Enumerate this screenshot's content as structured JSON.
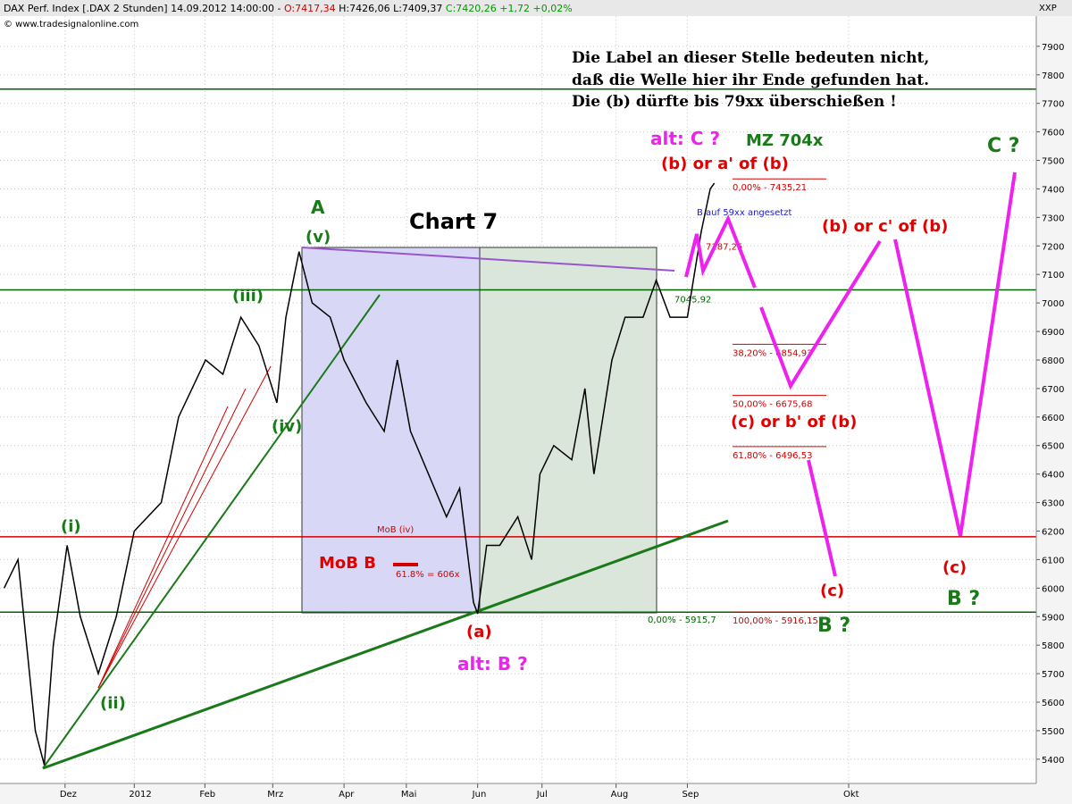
{
  "chart_data": {
    "type": "line",
    "header": {
      "instrument": "DAX Perf. Index [.DAX  2 Stunden] 14.09.2012 14:00:00 -",
      "open": "O:7417,34",
      "high": "H:7426,06",
      "low": "L:7409,37",
      "close": "C:7420,26 +1,72 +0,02%"
    },
    "copyright": "© www.tradesignalonline.com",
    "axis_label": "XXP",
    "x": [
      0.12,
      0.32,
      0.57,
      0.7,
      0.83,
      1.03,
      1.22,
      1.48,
      1.74,
      2.0,
      2.39,
      2.64,
      3.03,
      3.28,
      3.54,
      3.8,
      4.06,
      4.19,
      4.38,
      4.57,
      4.83,
      5.03,
      5.35,
      5.61,
      5.8,
      5.99,
      6.25,
      6.51,
      6.7,
      6.9,
      6.96,
      7.09,
      7.28,
      7.54,
      7.74,
      7.86,
      8.06,
      8.32,
      8.51,
      8.64,
      8.9,
      9.09,
      9.35,
      9.54,
      9.74,
      9.99,
      10.19,
      10.32,
      10.38
    ],
    "series": [
      {
        "color": "#000000",
        "values": [
          6000,
          6100,
          5500,
          5380,
          5800,
          6150,
          5900,
          5700,
          5900,
          6200,
          6300,
          6600,
          6800,
          6750,
          6950,
          6850,
          6650,
          6950,
          7180,
          7000,
          6950,
          6800,
          6650,
          6550,
          6800,
          6550,
          6400,
          6250,
          6350,
          5950,
          5910,
          6150,
          6150,
          6250,
          6100,
          6400,
          6500,
          6450,
          6700,
          6400,
          6800,
          6950,
          6950,
          7080,
          6950,
          6950,
          7250,
          7400,
          7420
        ]
      }
    ],
    "xlim": [
      0.06,
      15.03
    ],
    "xticks": [
      {
        "value": 1,
        "label": "Dez"
      },
      {
        "value": 2,
        "label": "2012"
      },
      {
        "value": 3.02,
        "label": "Feb"
      },
      {
        "value": 4,
        "label": "Mrz"
      },
      {
        "value": 5.03,
        "label": "Apr"
      },
      {
        "value": 5.93,
        "label": "Mai"
      },
      {
        "value": 6.96,
        "label": "Jun"
      },
      {
        "value": 7.89,
        "label": "Jul"
      },
      {
        "value": 8.96,
        "label": "Aug"
      },
      {
        "value": 9.99,
        "label": "Sep"
      },
      {
        "value": 12.32,
        "label": "Okt"
      }
    ],
    "ylim": [
      5315,
      8006
    ],
    "yticks": [
      5400,
      5500,
      5600,
      5700,
      5800,
      5900,
      6000,
      6100,
      6200,
      6300,
      6400,
      6500,
      6600,
      6700,
      6800,
      6900,
      7000,
      7100,
      7200,
      7300,
      7400,
      7500,
      7600,
      7700,
      7800,
      7900
    ],
    "grid": true,
    "hlines": [
      {
        "value": 7750,
        "color": "#006400"
      },
      {
        "value": 7045.92,
        "color": "#006400",
        "label": "7045,92"
      },
      {
        "value": 6180,
        "color": "#d00000"
      },
      {
        "value": 5915.7,
        "color": "#006400",
        "label": "0,00% - 5915,7"
      }
    ],
    "fib_levels": [
      {
        "value": 7435.21,
        "label": "0,00% - 7435,21"
      },
      {
        "value": 6854.93,
        "label": "38,20% - 6854,93"
      },
      {
        "value": 6675.68,
        "label": "50,00% - 6675,68"
      },
      {
        "value": 6496.53,
        "label": "61,80% - 6496,53"
      },
      {
        "value": 5916.15,
        "label": "100,00% - 5916,15"
      }
    ],
    "price_labels": [
      {
        "value": 7187.25,
        "label": "7187,25"
      }
    ],
    "annotations": [
      "Die Label an dieser Stelle bedeuten nicht,",
      "daß die Welle hier ihr Ende gefunden hat.",
      "Die (b) dürfte bis 79xx überschießen !",
      "alt: C ?",
      "MZ 704x",
      "(b) or a' of (b)",
      "C ?",
      "A",
      "Chart 7",
      "(v)",
      "(iii)",
      "(iv)",
      "(i)",
      "(ii)",
      "(b) or c' of (b)",
      "B auf 59xx angesetzt",
      "(c) or b' of (b)",
      "MoB (iv)",
      "MoB B",
      "61.8% = 606x",
      "(c)",
      "(c)",
      "B ?",
      "B ?",
      "(a)",
      "alt: B ?"
    ]
  }
}
